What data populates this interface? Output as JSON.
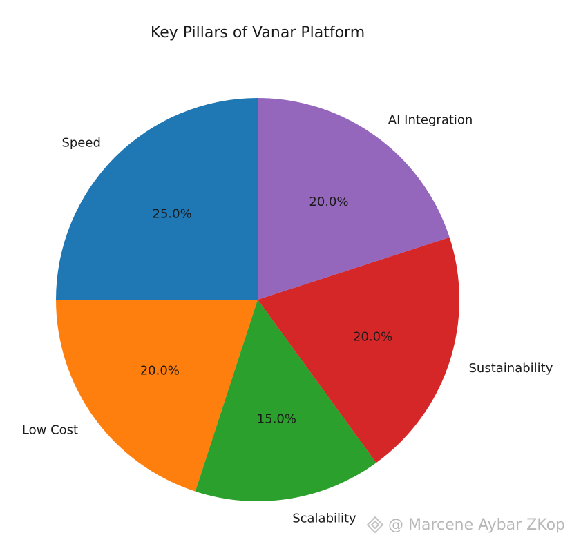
{
  "chart_data": {
    "type": "pie",
    "title": "Key Pillars of Vanar Platform",
    "start_angle": 90,
    "direction": "counterclockwise",
    "slices": [
      {
        "label": "Speed",
        "value": 25.0,
        "pct_label": "25.0%",
        "color": "#1f77b4"
      },
      {
        "label": "Low Cost",
        "value": 20.0,
        "pct_label": "20.0%",
        "color": "#ff7f0e"
      },
      {
        "label": "Scalability",
        "value": 15.0,
        "pct_label": "15.0%",
        "color": "#2ca02c"
      },
      {
        "label": "Sustainability",
        "value": 20.0,
        "pct_label": "20.0%",
        "color": "#d62728"
      },
      {
        "label": "AI Integration",
        "value": 20.0,
        "pct_label": "20.0%",
        "color": "#9467bd"
      }
    ],
    "legend": "none"
  },
  "watermark": {
    "text": "@ Marcene Aybar ZKop",
    "icon": "diamond-logo-icon"
  }
}
